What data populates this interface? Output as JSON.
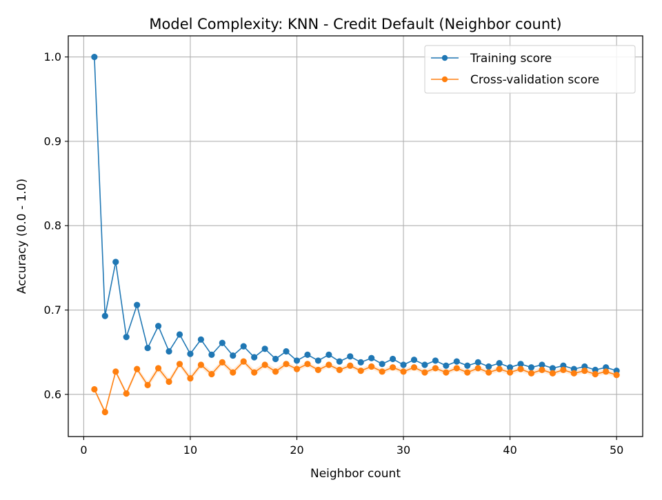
{
  "chart_data": {
    "type": "line",
    "title": "Model Complexity: KNN - Credit Default (Neighbor count)",
    "xlabel": "Neighbor count",
    "ylabel": "Accuracy (0.0 - 1.0)",
    "xlim": [
      -1.45,
      52.45
    ],
    "ylim": [
      0.55,
      1.025
    ],
    "xticks": [
      0,
      10,
      20,
      30,
      40,
      50
    ],
    "xtick_labels": [
      "0",
      "10",
      "20",
      "30",
      "40",
      "50"
    ],
    "yticks": [
      0.6,
      0.7,
      0.8,
      0.9,
      1.0
    ],
    "ytick_labels": [
      "0.6",
      "0.7",
      "0.8",
      "0.9",
      "1.0"
    ],
    "grid": true,
    "legend_position": "top-right",
    "x": [
      1,
      2,
      3,
      4,
      5,
      6,
      7,
      8,
      9,
      10,
      11,
      12,
      13,
      14,
      15,
      16,
      17,
      18,
      19,
      20,
      21,
      22,
      23,
      24,
      25,
      26,
      27,
      28,
      29,
      30,
      31,
      32,
      33,
      34,
      35,
      36,
      37,
      38,
      39,
      40,
      41,
      42,
      43,
      44,
      45,
      46,
      47,
      48,
      49,
      50
    ],
    "series": [
      {
        "name": "Training score",
        "color": "#1f77b4",
        "values": [
          1.0,
          0.693,
          0.757,
          0.668,
          0.706,
          0.655,
          0.681,
          0.651,
          0.671,
          0.648,
          0.665,
          0.647,
          0.661,
          0.646,
          0.657,
          0.644,
          0.654,
          0.642,
          0.651,
          0.64,
          0.647,
          0.64,
          0.647,
          0.639,
          0.645,
          0.638,
          0.643,
          0.636,
          0.642,
          0.635,
          0.641,
          0.635,
          0.64,
          0.634,
          0.639,
          0.634,
          0.638,
          0.633,
          0.637,
          0.632,
          0.636,
          0.632,
          0.635,
          0.631,
          0.634,
          0.63,
          0.633,
          0.629,
          0.632,
          0.628
        ]
      },
      {
        "name": "Cross-validation score",
        "color": "#ff7f0e",
        "band_color": "#ff7f0e",
        "values": [
          0.606,
          0.579,
          0.627,
          0.601,
          0.63,
          0.611,
          0.631,
          0.615,
          0.636,
          0.619,
          0.635,
          0.624,
          0.638,
          0.626,
          0.639,
          0.626,
          0.635,
          0.627,
          0.636,
          0.63,
          0.636,
          0.629,
          0.635,
          0.629,
          0.634,
          0.628,
          0.633,
          0.627,
          0.632,
          0.627,
          0.632,
          0.626,
          0.631,
          0.626,
          0.631,
          0.626,
          0.631,
          0.626,
          0.63,
          0.626,
          0.63,
          0.625,
          0.629,
          0.625,
          0.629,
          0.625,
          0.628,
          0.624,
          0.627,
          0.623
        ],
        "std": [
          0.002,
          0.003,
          0.002,
          0.003,
          0.003,
          0.004,
          0.004,
          0.004,
          0.003,
          0.004,
          0.003,
          0.004,
          0.003,
          0.004,
          0.003,
          0.004,
          0.003,
          0.004,
          0.003,
          0.003,
          0.003,
          0.003,
          0.003,
          0.003,
          0.003,
          0.003,
          0.003,
          0.003,
          0.003,
          0.003,
          0.003,
          0.003,
          0.003,
          0.003,
          0.003,
          0.003,
          0.003,
          0.003,
          0.003,
          0.003,
          0.003,
          0.003,
          0.003,
          0.003,
          0.003,
          0.003,
          0.003,
          0.003,
          0.003,
          0.003
        ]
      }
    ]
  }
}
